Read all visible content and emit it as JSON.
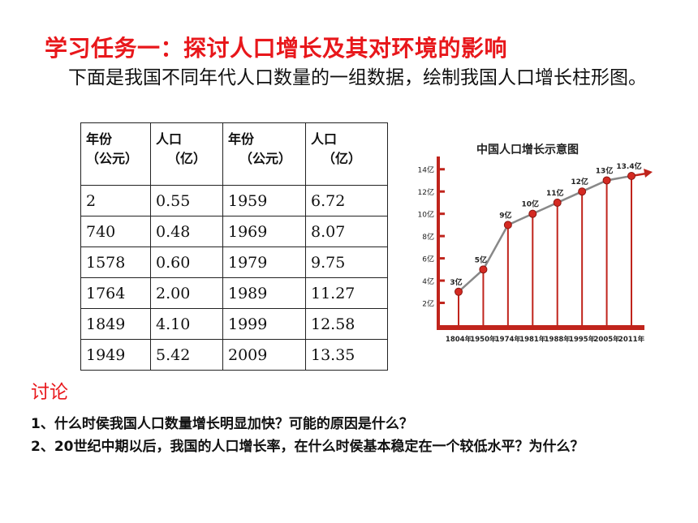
{
  "title": "学习任务一：探讨人口增长及其对环境的影响",
  "intro": "下面是我国不同年代人口数量的一组数据，绘制我国人口增长柱形图。",
  "table": {
    "headers": [
      {
        "l1": "年份",
        "l2": "（公元）"
      },
      {
        "l1": "人口",
        "l2": "（亿）"
      },
      {
        "l1": "年份",
        "l2": "（公元）"
      },
      {
        "l1": "人口",
        "l2": "（亿）"
      }
    ],
    "rows": [
      [
        "2",
        "0.55",
        "1959",
        "6.72"
      ],
      [
        "740",
        "0.48",
        "1969",
        "8.07"
      ],
      [
        "1578",
        "0.60",
        "1979",
        "9.75"
      ],
      [
        "1764",
        "2.00",
        "1989",
        "11.27"
      ],
      [
        "1849",
        "4.10",
        "1999",
        "12.58"
      ],
      [
        "1949",
        "5.42",
        "2009",
        "13.35"
      ]
    ]
  },
  "chart_data": {
    "type": "line",
    "title": "中国人口增长示意图",
    "categories": [
      "1804年",
      "1950年",
      "1974年",
      "1981年",
      "1988年",
      "1995年",
      "2005年",
      "2011年"
    ],
    "values": [
      3,
      5,
      9,
      10,
      11,
      12,
      13,
      13.4
    ],
    "point_labels": [
      "3亿",
      "5亿",
      "9亿",
      "10亿",
      "11亿",
      "12亿",
      "13亿",
      "13.4亿"
    ],
    "yticks": [
      "2亿",
      "4亿",
      "6亿",
      "8亿",
      "10亿",
      "12亿",
      "14亿"
    ],
    "ylim": [
      0,
      15
    ],
    "colors": {
      "bar": "#c0241c",
      "line": "#888888",
      "point": "#d42a22",
      "arrow": "#c0241c",
      "title": "#222222"
    }
  },
  "discussion": {
    "title": "讨论",
    "q1": "1、什么时侯我国人口数量增长明显加快？可能的原因是什么？",
    "q2": "2、20世纪中期以后，我国的人口增长率，在什么时侯基本稳定在一个较低水平？为什么？"
  }
}
